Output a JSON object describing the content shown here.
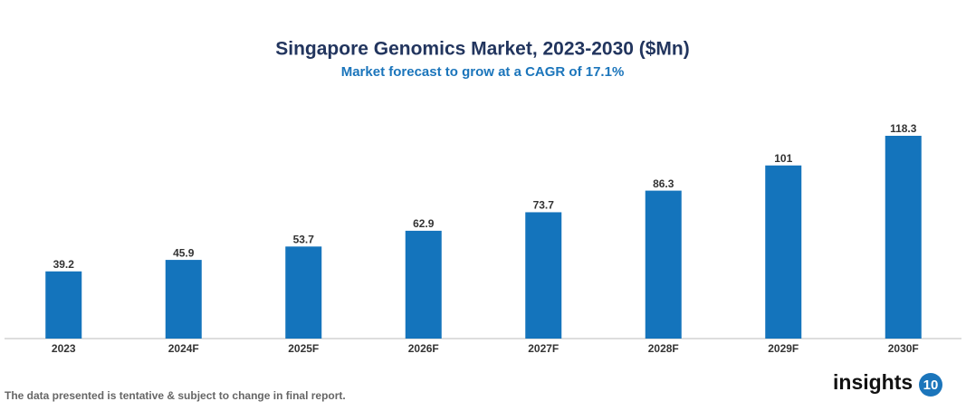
{
  "chart_data": {
    "type": "bar",
    "title": "Singapore Genomics Market, 2023-2030 ($Mn)",
    "subtitle": "Market forecast to grow at a CAGR of 17.1%",
    "categories": [
      "2023",
      "2024F",
      "2025F",
      "2026F",
      "2027F",
      "2028F",
      "2029F",
      "2030F"
    ],
    "values": [
      39.2,
      45.9,
      53.7,
      62.9,
      73.7,
      86.3,
      101,
      118.3
    ],
    "color": "#1474bc",
    "footnote": "The data presented is tentative & subject to change in final report.",
    "brand": {
      "text": "insights",
      "badge": "10"
    }
  }
}
